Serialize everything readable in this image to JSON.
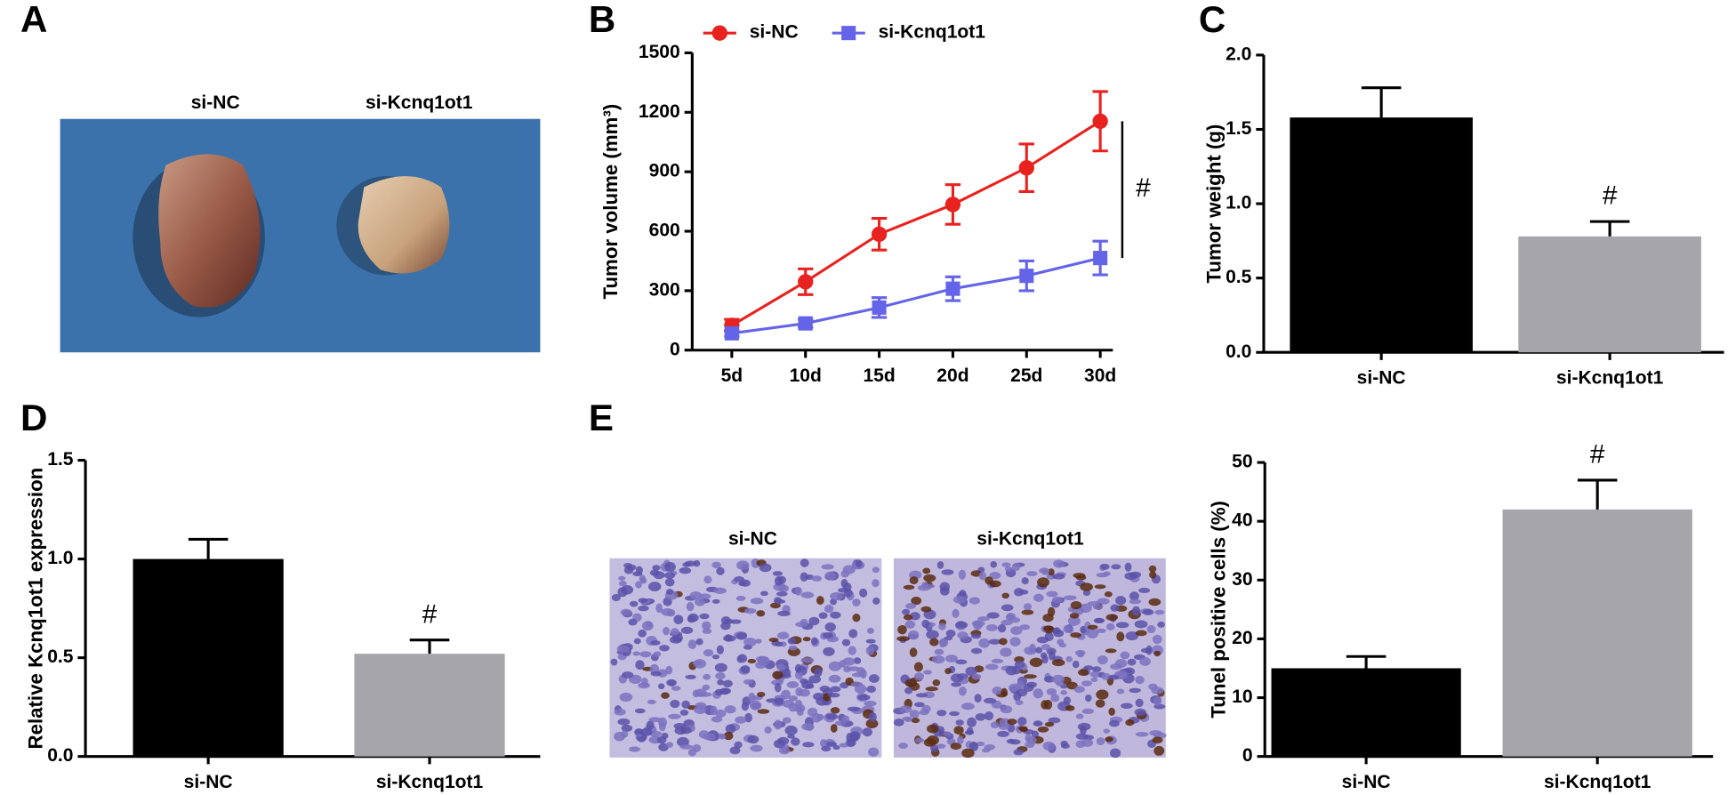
{
  "figure": {
    "panel_labels": [
      "A",
      "B",
      "C",
      "D",
      "E"
    ],
    "photo_a_labels": [
      "si-NC",
      "si-Kcnq1ot1"
    ],
    "photo_e_labels": [
      "si-NC",
      "si-Kcnq1ot1"
    ]
  },
  "chart_data": [
    {
      "type": "line",
      "y_label": "Tumor volume (mm³)",
      "categories": [
        "5d",
        "10d",
        "15d",
        "20d",
        "25d",
        "30d"
      ],
      "series": [
        {
          "name": "si-NC",
          "color": "#e8221f",
          "marker": "circle",
          "values": [
            125,
            345,
            585,
            735,
            920,
            1155
          ],
          "errors": [
            30,
            65,
            80,
            100,
            120,
            150
          ]
        },
        {
          "name": "si-Kcnq1ot1",
          "color": "#6464e8",
          "marker": "square",
          "values": [
            85,
            135,
            215,
            310,
            375,
            465
          ],
          "errors": [
            15,
            20,
            50,
            60,
            75,
            85
          ]
        }
      ],
      "ylim": [
        0,
        1500
      ],
      "yticks": [
        0,
        300,
        600,
        900,
        1200,
        1500
      ],
      "annotation": "#"
    },
    {
      "type": "bar",
      "y_label": "Tumor weight (g)",
      "categories": [
        "si-NC",
        "si-Kcnq1ot1"
      ],
      "values": [
        1.58,
        0.78
      ],
      "errors": [
        0.2,
        0.1
      ],
      "colors": [
        "#000000",
        "#a6a6aa"
      ],
      "ylim": [
        0,
        2.0
      ],
      "yticks": [
        {
          "value": 0,
          "label": "0.0"
        },
        {
          "value": 0.5,
          "label": "0.5"
        },
        {
          "value": 1,
          "label": "1.0"
        },
        {
          "value": 1.5,
          "label": "1.5"
        },
        {
          "value": 2,
          "label": "2.0"
        }
      ],
      "annotation": "#"
    },
    {
      "type": "bar",
      "y_label": "Relative Kcnq1ot1 expression",
      "categories": [
        "si-NC",
        "si-Kcnq1ot1"
      ],
      "values": [
        1.0,
        0.52
      ],
      "errors": [
        0.1,
        0.07
      ],
      "colors": [
        "#000000",
        "#a6a6aa"
      ],
      "ylim": [
        0,
        1.5
      ],
      "yticks": [
        {
          "value": 0,
          "label": "0.0"
        },
        {
          "value": 0.5,
          "label": "0.5"
        },
        {
          "value": 1,
          "label": "1.0"
        },
        {
          "value": 1.5,
          "label": "1.5"
        }
      ],
      "annotation": "#"
    },
    {
      "type": "bar",
      "y_label": "Tunel positive cells (%)",
      "categories": [
        "si-NC",
        "si-Kcnq1ot1"
      ],
      "values": [
        15,
        42
      ],
      "errors": [
        2,
        5
      ],
      "colors": [
        "#000000",
        "#a6a6aa"
      ],
      "ylim": [
        0,
        50
      ],
      "yticks": [
        0,
        10,
        20,
        30,
        40,
        50
      ],
      "annotation": "#"
    }
  ]
}
